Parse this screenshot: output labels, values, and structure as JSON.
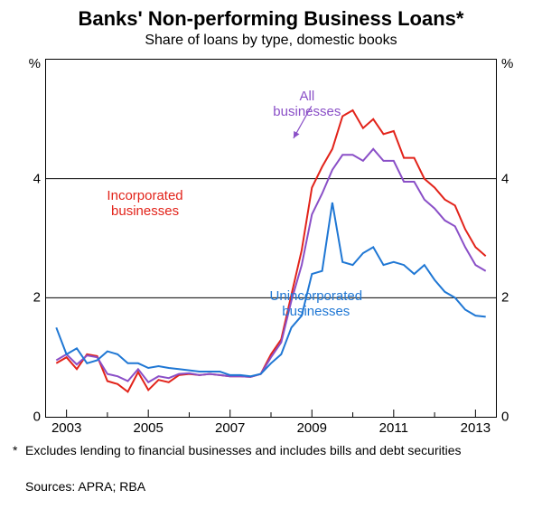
{
  "title": "Banks' Non-performing Business Loans*",
  "subtitle": "Share of loans by type, domestic books",
  "y_unit": "%",
  "footnote_marker": "*",
  "footnote": "Excludes lending to financial businesses and includes bills and debt securities",
  "sources": "Sources: APRA; RBA",
  "chart": {
    "type": "line",
    "background_color": "#ffffff",
    "xlim": [
      2002.5,
      2013.5
    ],
    "ylim": [
      0,
      6
    ],
    "yticks": [
      0,
      2,
      4
    ],
    "xticks": [
      2003,
      2005,
      2007,
      2009,
      2011,
      2013
    ],
    "grid_color": "#000000",
    "line_width": 2,
    "label_fontsize": 15,
    "title_fontsize": 22,
    "subtitle_fontsize": 16,
    "series": [
      {
        "name": "Incorporated businesses",
        "color": "#e2231a",
        "label_pos": {
          "x_pct": 22,
          "y_pct": 36
        },
        "data": [
          [
            2002.75,
            0.9
          ],
          [
            2003.0,
            1.0
          ],
          [
            2003.25,
            0.8
          ],
          [
            2003.5,
            1.05
          ],
          [
            2003.75,
            1.02
          ],
          [
            2004.0,
            0.6
          ],
          [
            2004.25,
            0.55
          ],
          [
            2004.5,
            0.42
          ],
          [
            2004.75,
            0.75
          ],
          [
            2005.0,
            0.45
          ],
          [
            2005.25,
            0.62
          ],
          [
            2005.5,
            0.58
          ],
          [
            2005.75,
            0.7
          ],
          [
            2006.0,
            0.72
          ],
          [
            2006.25,
            0.7
          ],
          [
            2006.5,
            0.72
          ],
          [
            2006.75,
            0.7
          ],
          [
            2007.0,
            0.68
          ],
          [
            2007.25,
            0.68
          ],
          [
            2007.5,
            0.67
          ],
          [
            2007.75,
            0.72
          ],
          [
            2008.0,
            1.05
          ],
          [
            2008.25,
            1.3
          ],
          [
            2008.5,
            2.05
          ],
          [
            2008.75,
            2.8
          ],
          [
            2009.0,
            3.85
          ],
          [
            2009.25,
            4.2
          ],
          [
            2009.5,
            4.5
          ],
          [
            2009.75,
            5.05
          ],
          [
            2010.0,
            5.15
          ],
          [
            2010.25,
            4.85
          ],
          [
            2010.5,
            5.0
          ],
          [
            2010.75,
            4.75
          ],
          [
            2011.0,
            4.8
          ],
          [
            2011.25,
            4.35
          ],
          [
            2011.5,
            4.35
          ],
          [
            2011.75,
            4.0
          ],
          [
            2012.0,
            3.85
          ],
          [
            2012.25,
            3.65
          ],
          [
            2012.5,
            3.55
          ],
          [
            2012.75,
            3.15
          ],
          [
            2013.0,
            2.85
          ],
          [
            2013.25,
            2.7
          ]
        ]
      },
      {
        "name": "All businesses",
        "color": "#8a4fc7",
        "label_pos": {
          "x_pct": 58,
          "y_pct": 8
        },
        "arrow": {
          "from_pct": [
            59,
            13
          ],
          "to_pct": [
            55,
            22
          ]
        },
        "data": [
          [
            2002.75,
            0.95
          ],
          [
            2003.0,
            1.05
          ],
          [
            2003.25,
            0.88
          ],
          [
            2003.5,
            1.03
          ],
          [
            2003.75,
            1.0
          ],
          [
            2004.0,
            0.72
          ],
          [
            2004.25,
            0.68
          ],
          [
            2004.5,
            0.6
          ],
          [
            2004.75,
            0.8
          ],
          [
            2005.0,
            0.58
          ],
          [
            2005.25,
            0.68
          ],
          [
            2005.5,
            0.65
          ],
          [
            2005.75,
            0.72
          ],
          [
            2006.0,
            0.73
          ],
          [
            2006.25,
            0.7
          ],
          [
            2006.5,
            0.72
          ],
          [
            2006.75,
            0.7
          ],
          [
            2007.0,
            0.68
          ],
          [
            2007.25,
            0.68
          ],
          [
            2007.5,
            0.67
          ],
          [
            2007.75,
            0.72
          ],
          [
            2008.0,
            1.0
          ],
          [
            2008.25,
            1.25
          ],
          [
            2008.5,
            1.95
          ],
          [
            2008.75,
            2.55
          ],
          [
            2009.0,
            3.4
          ],
          [
            2009.25,
            3.75
          ],
          [
            2009.5,
            4.15
          ],
          [
            2009.75,
            4.4
          ],
          [
            2010.0,
            4.4
          ],
          [
            2010.25,
            4.3
          ],
          [
            2010.5,
            4.5
          ],
          [
            2010.75,
            4.3
          ],
          [
            2011.0,
            4.3
          ],
          [
            2011.25,
            3.95
          ],
          [
            2011.5,
            3.95
          ],
          [
            2011.75,
            3.65
          ],
          [
            2012.0,
            3.5
          ],
          [
            2012.25,
            3.3
          ],
          [
            2012.5,
            3.2
          ],
          [
            2012.75,
            2.85
          ],
          [
            2013.0,
            2.55
          ],
          [
            2013.25,
            2.45
          ]
        ]
      },
      {
        "name": "Unincorporated businesses",
        "color": "#1f77d4",
        "label_pos": {
          "x_pct": 60,
          "y_pct": 64
        },
        "data": [
          [
            2002.75,
            1.5
          ],
          [
            2003.0,
            1.05
          ],
          [
            2003.25,
            1.15
          ],
          [
            2003.5,
            0.9
          ],
          [
            2003.75,
            0.95
          ],
          [
            2004.0,
            1.1
          ],
          [
            2004.25,
            1.05
          ],
          [
            2004.5,
            0.9
          ],
          [
            2004.75,
            0.9
          ],
          [
            2005.0,
            0.82
          ],
          [
            2005.25,
            0.85
          ],
          [
            2005.5,
            0.82
          ],
          [
            2005.75,
            0.8
          ],
          [
            2006.0,
            0.78
          ],
          [
            2006.25,
            0.76
          ],
          [
            2006.5,
            0.76
          ],
          [
            2006.75,
            0.76
          ],
          [
            2007.0,
            0.7
          ],
          [
            2007.25,
            0.7
          ],
          [
            2007.5,
            0.68
          ],
          [
            2007.75,
            0.72
          ],
          [
            2008.0,
            0.9
          ],
          [
            2008.25,
            1.05
          ],
          [
            2008.5,
            1.5
          ],
          [
            2008.75,
            1.7
          ],
          [
            2009.0,
            2.4
          ],
          [
            2009.25,
            2.45
          ],
          [
            2009.5,
            3.6
          ],
          [
            2009.75,
            2.6
          ],
          [
            2010.0,
            2.55
          ],
          [
            2010.25,
            2.75
          ],
          [
            2010.5,
            2.85
          ],
          [
            2010.75,
            2.55
          ],
          [
            2011.0,
            2.6
          ],
          [
            2011.25,
            2.55
          ],
          [
            2011.5,
            2.4
          ],
          [
            2011.75,
            2.55
          ],
          [
            2012.0,
            2.3
          ],
          [
            2012.25,
            2.1
          ],
          [
            2012.5,
            2.0
          ],
          [
            2012.75,
            1.8
          ],
          [
            2013.0,
            1.7
          ],
          [
            2013.25,
            1.68
          ]
        ]
      }
    ]
  }
}
